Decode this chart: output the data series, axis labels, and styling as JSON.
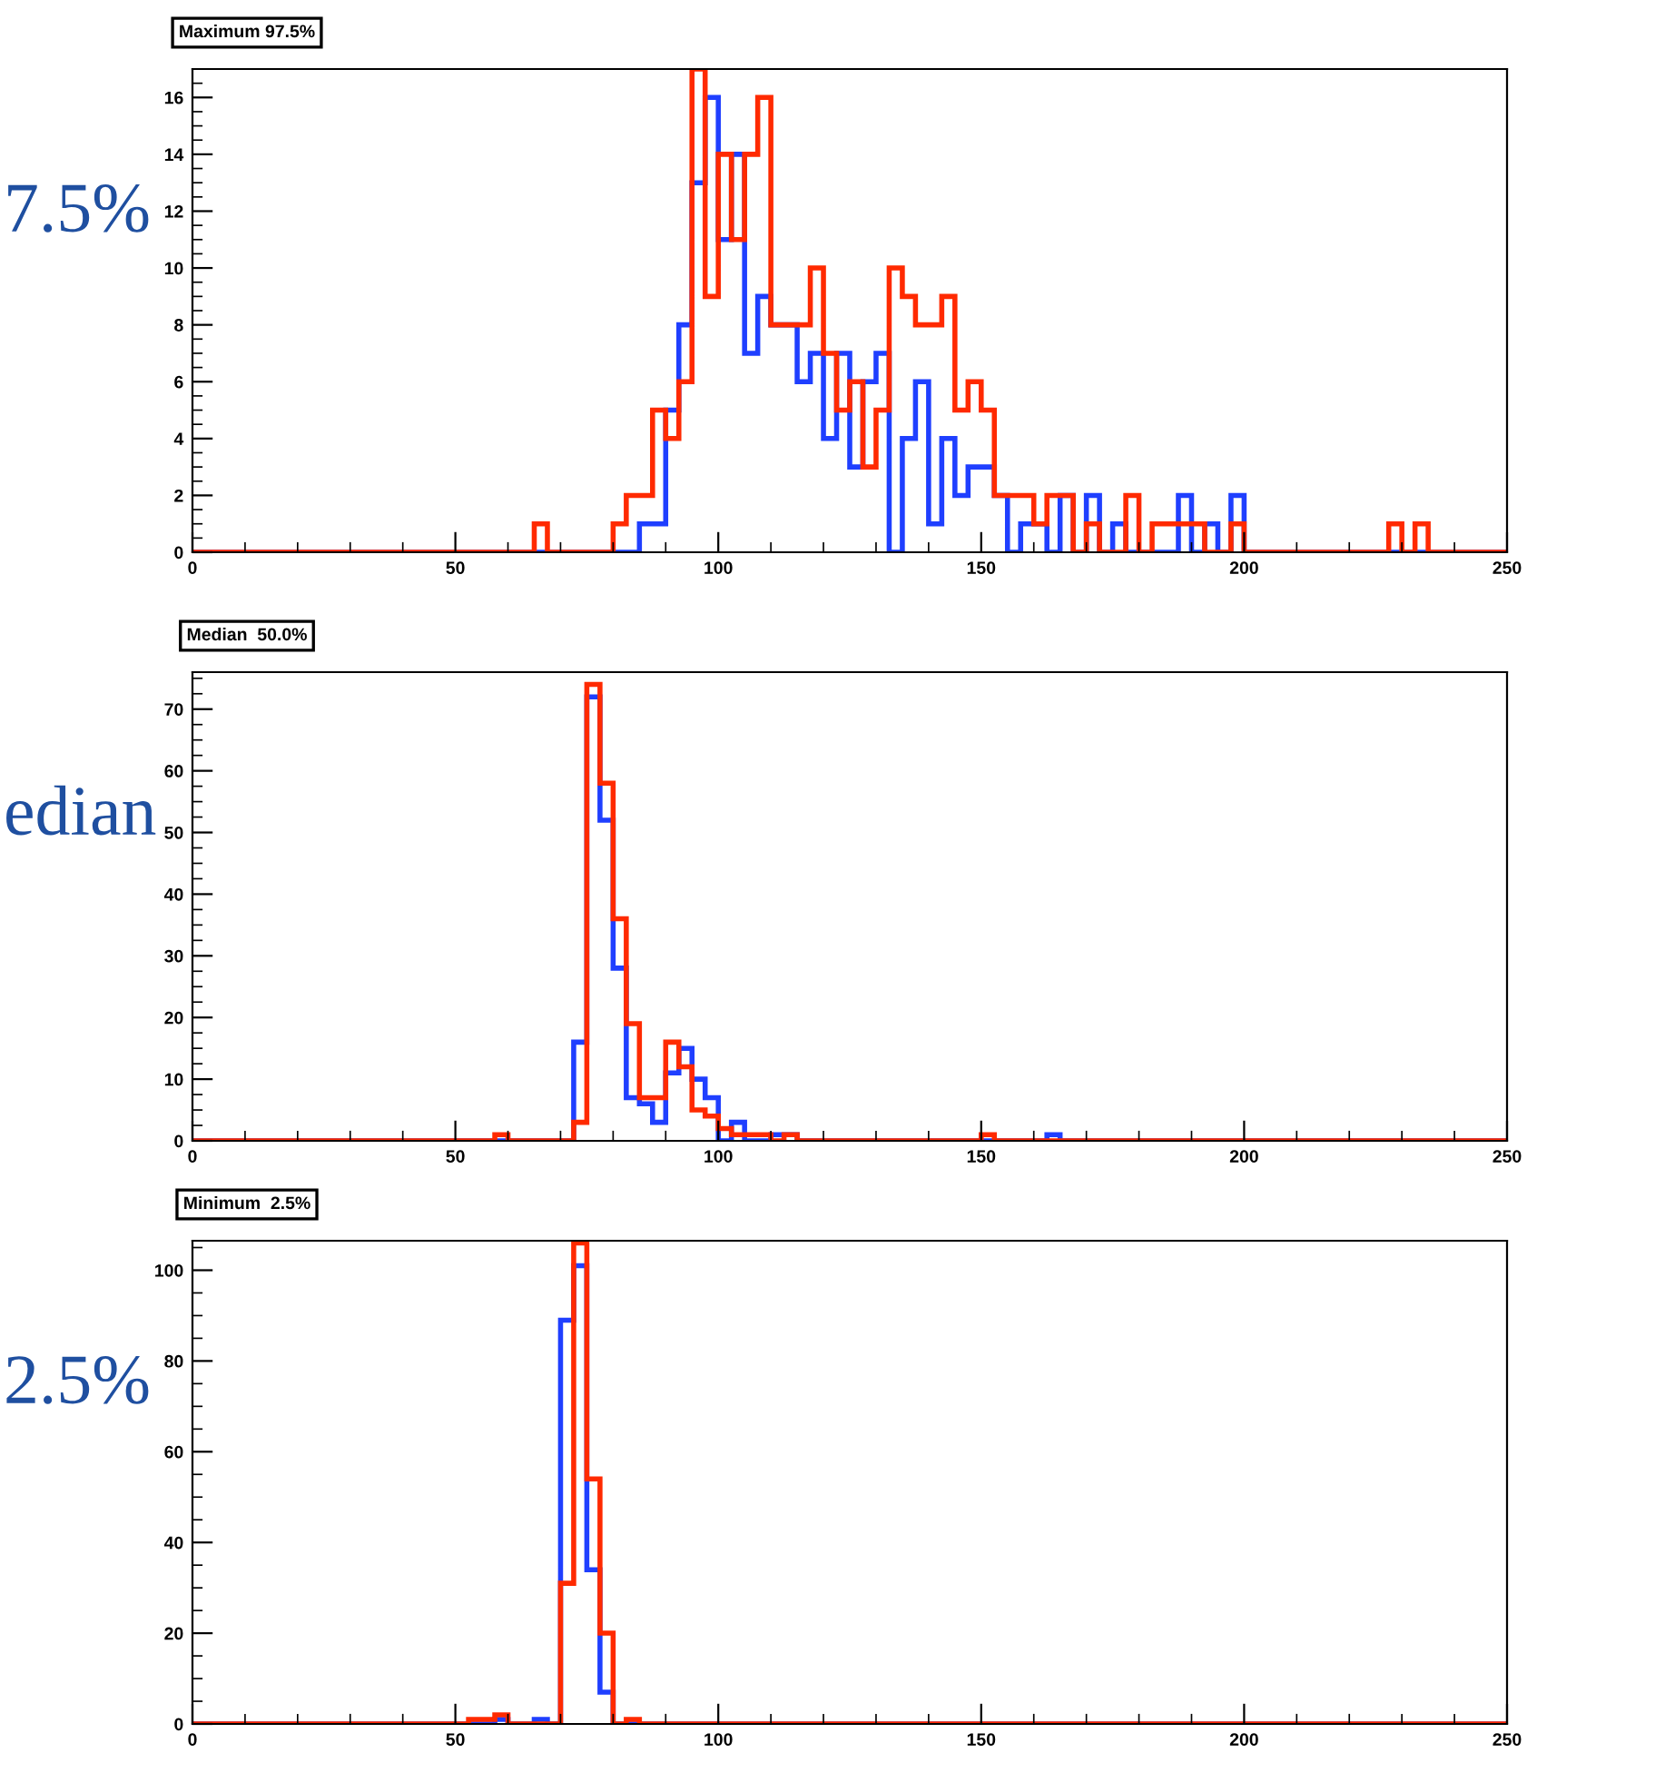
{
  "chart_data": [
    {
      "type": "histogram",
      "title": "Maximum 97.5%",
      "annotations": [
        "7.5%"
      ],
      "bins": [
        0,
        2.5,
        5,
        7.5,
        10,
        12.5,
        15,
        17.5,
        20,
        22.5,
        25,
        27.5,
        30,
        32.5,
        35,
        37.5,
        40,
        42.5,
        45,
        47.5,
        50,
        52.5,
        55,
        57.5,
        60,
        62.5,
        65,
        67.5,
        70,
        72.5,
        75,
        77.5,
        80,
        82.5,
        85,
        87.5,
        90,
        92.5,
        95,
        97.5,
        100,
        102.5,
        105,
        107.5,
        110,
        112.5,
        115,
        117.5,
        120,
        122.5,
        125,
        127.5,
        130,
        132.5,
        135,
        137.5,
        140,
        142.5,
        145,
        147.5,
        150,
        152.5,
        155,
        157.5,
        160,
        162.5,
        165,
        167.5,
        170,
        172.5,
        175,
        177.5,
        180,
        182.5,
        185,
        187.5,
        190,
        192.5,
        195,
        197.5,
        200,
        202.5,
        205,
        207.5,
        210,
        212.5,
        215,
        217.5,
        220,
        222.5,
        225,
        227.5,
        230,
        232.5,
        235,
        237.5,
        240,
        242.5,
        245,
        247.5,
        250
      ],
      "series": [
        {
          "color": "#1f3fff",
          "values": [
            0,
            0,
            0,
            0,
            0,
            0,
            0,
            0,
            0,
            0,
            0,
            0,
            0,
            0,
            0,
            0,
            0,
            0,
            0,
            0,
            0,
            0,
            0,
            0,
            0,
            0,
            0,
            0,
            0,
            0,
            0,
            0,
            0,
            0,
            1,
            1,
            5,
            8,
            13,
            16,
            11,
            14,
            7,
            9,
            8,
            8,
            6,
            7,
            4,
            7,
            3,
            6,
            7,
            0,
            4,
            6,
            1,
            4,
            2,
            3,
            3,
            2,
            0,
            1,
            1,
            0,
            2,
            0,
            2,
            0,
            1,
            0,
            0,
            0,
            0,
            2,
            0,
            1,
            0,
            2,
            0,
            0,
            0,
            0,
            0,
            0,
            0,
            0,
            0,
            0,
            0,
            0,
            0,
            0,
            0,
            0,
            0,
            0,
            0,
            0
          ]
        },
        {
          "color": "#ff2a00",
          "values": [
            0,
            0,
            0,
            0,
            0,
            0,
            0,
            0,
            0,
            0,
            0,
            0,
            0,
            0,
            0,
            0,
            0,
            0,
            0,
            0,
            0,
            0,
            0,
            0,
            0,
            0,
            1,
            0,
            0,
            0,
            0,
            0,
            1,
            2,
            2,
            5,
            4,
            6,
            17,
            9,
            14,
            11,
            14,
            16,
            8,
            8,
            8,
            10,
            7,
            5,
            6,
            3,
            5,
            10,
            9,
            8,
            8,
            9,
            5,
            6,
            5,
            2,
            2,
            2,
            1,
            2,
            2,
            0,
            1,
            0,
            0,
            2,
            0,
            1,
            1,
            1,
            1,
            0,
            0,
            1,
            0,
            0,
            0,
            0,
            0,
            0,
            0,
            0,
            0,
            0,
            0,
            1,
            0,
            1,
            0,
            0,
            0,
            0,
            0,
            0
          ]
        }
      ],
      "xlim": [
        0,
        250
      ],
      "xticks": [
        0,
        50,
        100,
        150,
        200,
        250
      ],
      "ylim": [
        0,
        17
      ],
      "yticks": [
        0,
        2,
        4,
        6,
        8,
        10,
        12,
        14,
        16
      ]
    },
    {
      "type": "histogram",
      "title": "Median  50.0%",
      "annotations": [
        "edian"
      ],
      "bins": [
        0,
        2.5,
        5,
        7.5,
        10,
        12.5,
        15,
        17.5,
        20,
        22.5,
        25,
        27.5,
        30,
        32.5,
        35,
        37.5,
        40,
        42.5,
        45,
        47.5,
        50,
        52.5,
        55,
        57.5,
        60,
        62.5,
        65,
        67.5,
        70,
        72.5,
        75,
        77.5,
        80,
        82.5,
        85,
        87.5,
        90,
        92.5,
        95,
        97.5,
        100,
        102.5,
        105,
        107.5,
        110,
        112.5,
        115,
        117.5,
        120,
        122.5,
        125,
        127.5,
        130,
        132.5,
        135,
        137.5,
        140,
        142.5,
        145,
        147.5,
        150,
        152.5,
        155,
        157.5,
        160,
        162.5,
        165,
        167.5,
        170,
        172.5,
        175,
        177.5,
        180,
        182.5,
        185,
        187.5,
        190,
        192.5,
        195,
        197.5,
        200,
        202.5,
        205,
        207.5,
        210,
        212.5,
        215,
        217.5,
        220,
        222.5,
        225,
        227.5,
        230,
        232.5,
        235,
        237.5,
        240,
        242.5,
        245,
        247.5,
        250
      ],
      "series": [
        {
          "color": "#1f3fff",
          "values": [
            0,
            0,
            0,
            0,
            0,
            0,
            0,
            0,
            0,
            0,
            0,
            0,
            0,
            0,
            0,
            0,
            0,
            0,
            0,
            0,
            0,
            0,
            0,
            0,
            0,
            0,
            0,
            0,
            0,
            16,
            72,
            52,
            28,
            7,
            6,
            3,
            11,
            15,
            10,
            7,
            0,
            3,
            0,
            0,
            1,
            1,
            0,
            0,
            0,
            0,
            0,
            0,
            0,
            0,
            0,
            0,
            0,
            0,
            0,
            0,
            0,
            0,
            0,
            0,
            0,
            1,
            0,
            0,
            0,
            0,
            0,
            0,
            0,
            0,
            0,
            0,
            0,
            0,
            0,
            0,
            0,
            0,
            0,
            0,
            0,
            0,
            0,
            0,
            0,
            0,
            0,
            0,
            0,
            0,
            0,
            0,
            0,
            0,
            0,
            0
          ]
        },
        {
          "color": "#ff2a00",
          "values": [
            0,
            0,
            0,
            0,
            0,
            0,
            0,
            0,
            0,
            0,
            0,
            0,
            0,
            0,
            0,
            0,
            0,
            0,
            0,
            0,
            0,
            0,
            0,
            1,
            0,
            0,
            0,
            0,
            0,
            3,
            74,
            58,
            36,
            19,
            7,
            7,
            16,
            12,
            5,
            4,
            2,
            1,
            1,
            1,
            0,
            1,
            0,
            0,
            0,
            0,
            0,
            0,
            0,
            0,
            0,
            0,
            0,
            0,
            0,
            0,
            1,
            0,
            0,
            0,
            0,
            0,
            0,
            0,
            0,
            0,
            0,
            0,
            0,
            0,
            0,
            0,
            0,
            0,
            0,
            0,
            0,
            0,
            0,
            0,
            0,
            0,
            0,
            0,
            0,
            0,
            0,
            0,
            0,
            0,
            0,
            0,
            0,
            0,
            0,
            0
          ]
        }
      ],
      "xlim": [
        0,
        250
      ],
      "xticks": [
        0,
        50,
        100,
        150,
        200,
        250
      ],
      "ylim": [
        0,
        76
      ],
      "yticks": [
        0,
        10,
        20,
        30,
        40,
        50,
        60,
        70
      ]
    },
    {
      "type": "histogram",
      "title": "Minimum  2.5%",
      "annotations": [
        "2.5%"
      ],
      "bins": [
        0,
        2.5,
        5,
        7.5,
        10,
        12.5,
        15,
        17.5,
        20,
        22.5,
        25,
        27.5,
        30,
        32.5,
        35,
        37.5,
        40,
        42.5,
        45,
        47.5,
        50,
        52.5,
        55,
        57.5,
        60,
        62.5,
        65,
        67.5,
        70,
        72.5,
        75,
        77.5,
        80,
        82.5,
        85,
        87.5,
        90,
        92.5,
        95,
        97.5,
        100,
        102.5,
        105,
        107.5,
        110,
        112.5,
        115,
        117.5,
        120,
        122.5,
        125,
        127.5,
        130,
        132.5,
        135,
        137.5,
        140,
        142.5,
        145,
        147.5,
        150,
        152.5,
        155,
        157.5,
        160,
        162.5,
        165,
        167.5,
        170,
        172.5,
        175,
        177.5,
        180,
        182.5,
        185,
        187.5,
        190,
        192.5,
        195,
        197.5,
        200,
        202.5,
        205,
        207.5,
        210,
        212.5,
        215,
        217.5,
        220,
        222.5,
        225,
        227.5,
        230,
        232.5,
        235,
        237.5,
        240,
        242.5,
        245,
        247.5,
        250
      ],
      "series": [
        {
          "color": "#1f3fff",
          "values": [
            0,
            0,
            0,
            0,
            0,
            0,
            0,
            0,
            0,
            0,
            0,
            0,
            0,
            0,
            0,
            0,
            0,
            0,
            0,
            0,
            0,
            0,
            0,
            1,
            0,
            0,
            1,
            0,
            89,
            101,
            34,
            7,
            0,
            0,
            0,
            0,
            0,
            0,
            0,
            0,
            0,
            0,
            0,
            0,
            0,
            0,
            0,
            0,
            0,
            0,
            0,
            0,
            0,
            0,
            0,
            0,
            0,
            0,
            0,
            0,
            0,
            0,
            0,
            0,
            0,
            0,
            0,
            0,
            0,
            0,
            0,
            0,
            0,
            0,
            0,
            0,
            0,
            0,
            0,
            0,
            0,
            0,
            0,
            0,
            0,
            0,
            0,
            0,
            0,
            0,
            0,
            0,
            0,
            0,
            0,
            0,
            0,
            0,
            0,
            0
          ]
        },
        {
          "color": "#ff2a00",
          "values": [
            0,
            0,
            0,
            0,
            0,
            0,
            0,
            0,
            0,
            0,
            0,
            0,
            0,
            0,
            0,
            0,
            0,
            0,
            0,
            0,
            0,
            1,
            1,
            2,
            0,
            0,
            0,
            0,
            31,
            106,
            54,
            20,
            0,
            1,
            0,
            0,
            0,
            0,
            0,
            0,
            0,
            0,
            0,
            0,
            0,
            0,
            0,
            0,
            0,
            0,
            0,
            0,
            0,
            0,
            0,
            0,
            0,
            0,
            0,
            0,
            0,
            0,
            0,
            0,
            0,
            0,
            0,
            0,
            0,
            0,
            0,
            0,
            0,
            0,
            0,
            0,
            0,
            0,
            0,
            0,
            0,
            0,
            0,
            0,
            0,
            0,
            0,
            0,
            0,
            0,
            0,
            0,
            0,
            0,
            0,
            0,
            0,
            0,
            0,
            0
          ]
        }
      ],
      "xlim": [
        0,
        250
      ],
      "xticks": [
        0,
        50,
        100,
        150,
        200,
        250
      ],
      "ylim": [
        0,
        106.5
      ],
      "yticks": [
        0,
        20,
        40,
        60,
        80,
        100
      ]
    }
  ]
}
